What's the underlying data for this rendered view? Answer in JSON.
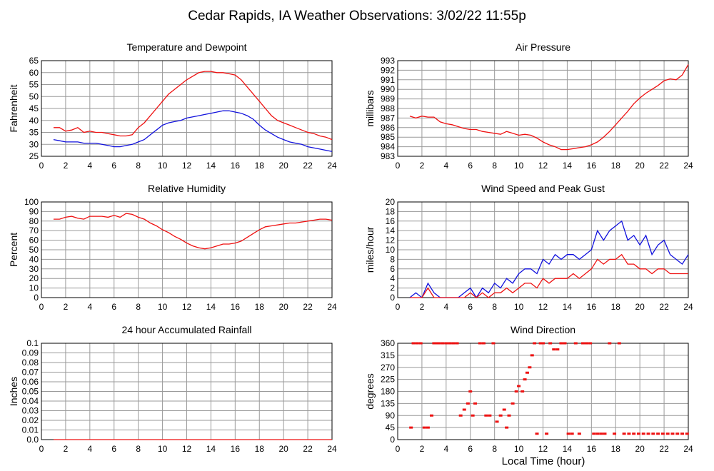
{
  "page": {
    "title": "Cedar Rapids, IA Weather Observations: 3/02/22 11:55p",
    "footer_xlabel": "Local Time (hour)"
  },
  "colors": {
    "red": "#ee1111",
    "blue": "#1111dd",
    "grid": "#9a9a9a"
  },
  "chart_data": [
    {
      "id": "temp",
      "type": "line",
      "title": "Temperature and Dewpoint",
      "ylabel": "Fahrenheit",
      "xlim": [
        0,
        24
      ],
      "ylim": [
        25,
        65
      ],
      "xticks": [
        2,
        4,
        6,
        8,
        10,
        12,
        14,
        16,
        18,
        20,
        22,
        24
      ],
      "yticks": [
        25,
        30,
        35,
        40,
        45,
        50,
        55,
        60,
        65
      ],
      "grid": true,
      "series": [
        {
          "color": "#ee1111",
          "x": [
            1,
            1.5,
            2,
            2.5,
            3,
            3.5,
            4,
            4.5,
            5,
            5.5,
            6,
            6.5,
            7,
            7.5,
            8,
            8.5,
            9,
            9.5,
            10,
            10.5,
            11,
            11.5,
            12,
            12.5,
            13,
            13.5,
            14,
            14.5,
            15,
            15.5,
            16,
            16.5,
            17,
            17.5,
            18,
            18.5,
            19,
            19.5,
            20,
            20.5,
            21,
            21.5,
            22,
            22.5,
            23,
            23.5,
            24
          ],
          "y": [
            37,
            37,
            35.5,
            36,
            37,
            35,
            35.5,
            35,
            35,
            34.5,
            34,
            33.5,
            33.5,
            34,
            37,
            39,
            42,
            45,
            48,
            51,
            53,
            55,
            57,
            58.5,
            60,
            60.5,
            60.5,
            60,
            60,
            59.5,
            59,
            57,
            54,
            51,
            48,
            45,
            42,
            40,
            39,
            38,
            37,
            36,
            35,
            34.5,
            33.5,
            33,
            32
          ]
        },
        {
          "color": "#1111dd",
          "x": [
            1,
            1.5,
            2,
            2.5,
            3,
            3.5,
            4,
            4.5,
            5,
            5.5,
            6,
            6.5,
            7,
            7.5,
            8,
            8.5,
            9,
            9.5,
            10,
            10.5,
            11,
            11.5,
            12,
            12.5,
            13,
            13.5,
            14,
            14.5,
            15,
            15.5,
            16,
            16.5,
            17,
            17.5,
            18,
            18.5,
            19,
            19.5,
            20,
            20.5,
            21,
            21.5,
            22,
            22.5,
            23,
            23.5,
            24
          ],
          "y": [
            32,
            31.5,
            31,
            31,
            31,
            30.5,
            30.5,
            30.5,
            30,
            29.5,
            29,
            29,
            29.5,
            30,
            31,
            32,
            34,
            36,
            38,
            39,
            39.5,
            40,
            41,
            41.5,
            42,
            42.5,
            43,
            43.5,
            44,
            44,
            43.5,
            43,
            42,
            40.5,
            38,
            36,
            34.5,
            33,
            32,
            31,
            30.5,
            30,
            29,
            28.5,
            28,
            27.5,
            27
          ]
        }
      ]
    },
    {
      "id": "pressure",
      "type": "line",
      "title": "Air Pressure",
      "ylabel": "millibars",
      "xlim": [
        0,
        24
      ],
      "ylim": [
        983,
        993
      ],
      "xticks": [
        2,
        4,
        6,
        8,
        10,
        12,
        14,
        16,
        18,
        20,
        22,
        24
      ],
      "yticks": [
        983,
        984,
        985,
        986,
        987,
        988,
        989,
        990,
        991,
        992,
        993
      ],
      "grid": true,
      "series": [
        {
          "color": "#ee1111",
          "x": [
            1,
            1.5,
            2,
            2.5,
            3,
            3.5,
            4,
            4.5,
            5,
            5.5,
            6,
            6.5,
            7,
            7.5,
            8,
            8.5,
            9,
            9.5,
            10,
            10.5,
            11,
            11.5,
            12,
            12.5,
            13,
            13.5,
            14,
            14.5,
            15,
            15.5,
            16,
            16.5,
            17,
            17.5,
            18,
            18.5,
            19,
            19.5,
            20,
            20.5,
            21,
            21.5,
            22,
            22.5,
            23,
            23.5,
            24
          ],
          "y": [
            987.2,
            987,
            987.2,
            987.1,
            987.1,
            986.6,
            986.4,
            986.3,
            986.1,
            985.9,
            985.8,
            985.8,
            985.6,
            985.5,
            985.4,
            985.3,
            985.6,
            985.4,
            985.2,
            985.3,
            985.2,
            984.9,
            984.5,
            984.2,
            984,
            983.7,
            983.7,
            983.8,
            983.9,
            984,
            984.2,
            984.5,
            985,
            985.6,
            986.3,
            987,
            987.7,
            988.5,
            989.1,
            989.6,
            990,
            990.4,
            990.9,
            991.1,
            991,
            991.5,
            992.6
          ]
        }
      ]
    },
    {
      "id": "humidity",
      "type": "line",
      "title": "Relative Humidity",
      "ylabel": "Percent",
      "xlim": [
        0,
        24
      ],
      "ylim": [
        0,
        100
      ],
      "xticks": [
        2,
        4,
        6,
        8,
        10,
        12,
        14,
        16,
        18,
        20,
        22,
        24
      ],
      "yticks": [
        0,
        10,
        20,
        30,
        40,
        50,
        60,
        70,
        80,
        90,
        100
      ],
      "grid": true,
      "series": [
        {
          "color": "#ee1111",
          "x": [
            1,
            1.5,
            2,
            2.5,
            3,
            3.5,
            4,
            4.5,
            5,
            5.5,
            6,
            6.5,
            7,
            7.5,
            8,
            8.5,
            9,
            9.5,
            10,
            10.5,
            11,
            11.5,
            12,
            12.5,
            13,
            13.5,
            14,
            14.5,
            15,
            15.5,
            16,
            16.5,
            17,
            17.5,
            18,
            18.5,
            19,
            19.5,
            20,
            20.5,
            21,
            21.5,
            22,
            22.5,
            23,
            23.5,
            24
          ],
          "y": [
            82,
            82,
            84,
            85,
            83,
            82,
            85,
            85,
            85,
            84,
            86,
            84,
            88,
            87,
            84,
            82,
            78,
            75,
            71,
            68,
            64,
            61,
            57,
            54,
            52,
            51,
            52,
            54,
            56,
            56,
            57,
            59,
            63,
            67,
            71,
            74,
            75,
            76,
            77,
            78,
            78,
            79,
            80,
            81,
            82,
            82,
            81
          ]
        }
      ]
    },
    {
      "id": "wind",
      "type": "line",
      "title": "Wind Speed and Peak Gust",
      "ylabel": "miles/hour",
      "xlim": [
        0,
        24
      ],
      "ylim": [
        0,
        20
      ],
      "xticks": [
        2,
        4,
        6,
        8,
        10,
        12,
        14,
        16,
        18,
        20,
        22,
        24
      ],
      "yticks": [
        0,
        2,
        4,
        6,
        8,
        10,
        12,
        14,
        16,
        18,
        20
      ],
      "grid": true,
      "series": [
        {
          "color": "#1111dd",
          "x": [
            1,
            1.5,
            2,
            2.5,
            3,
            3.5,
            4,
            4.5,
            5,
            5.5,
            6,
            6.5,
            7,
            7.5,
            8,
            8.5,
            9,
            9.5,
            10,
            10.5,
            11,
            11.5,
            12,
            12.5,
            13,
            13.5,
            14,
            14.5,
            15,
            15.5,
            16,
            16.5,
            17,
            17.5,
            18,
            18.5,
            19,
            19.5,
            20,
            20.5,
            21,
            21.5,
            22,
            22.5,
            23,
            23.5,
            24
          ],
          "y": [
            0,
            1,
            0,
            3,
            1,
            0,
            0,
            0,
            0,
            1,
            2,
            0,
            2,
            1,
            3,
            2,
            4,
            3,
            5,
            6,
            6,
            5,
            8,
            7,
            9,
            8,
            9,
            9,
            8,
            9,
            10,
            14,
            12,
            14,
            15,
            16,
            12,
            13,
            11,
            13,
            9,
            11,
            12,
            9,
            8,
            7,
            9
          ]
        },
        {
          "color": "#ee1111",
          "x": [
            1,
            1.5,
            2,
            2.5,
            3,
            3.5,
            4,
            4.5,
            5,
            5.5,
            6,
            6.5,
            7,
            7.5,
            8,
            8.5,
            9,
            9.5,
            10,
            10.5,
            11,
            11.5,
            12,
            12.5,
            13,
            13.5,
            14,
            14.5,
            15,
            15.5,
            16,
            16.5,
            17,
            17.5,
            18,
            18.5,
            19,
            19.5,
            20,
            20.5,
            21,
            21.5,
            22,
            22.5,
            23,
            23.5,
            24
          ],
          "y": [
            0,
            0,
            0,
            2,
            0,
            0,
            0,
            0,
            0,
            0,
            1,
            0,
            1,
            0,
            1,
            1,
            2,
            1,
            2,
            3,
            3,
            2,
            4,
            3,
            4,
            4,
            4,
            5,
            4,
            5,
            6,
            8,
            7,
            8,
            8,
            9,
            7,
            7,
            6,
            6,
            5,
            6,
            6,
            5,
            5,
            5,
            5
          ]
        }
      ]
    },
    {
      "id": "rain",
      "type": "line",
      "title": "24 hour Accumulated Rainfall",
      "ylabel": "Inches",
      "xlim": [
        0,
        24
      ],
      "ylim": [
        0,
        0.1
      ],
      "xticks": [
        2,
        4,
        6,
        8,
        10,
        12,
        14,
        16,
        18,
        20,
        22,
        24
      ],
      "yticks": [
        0.0,
        0.01,
        0.02,
        0.03,
        0.04,
        0.05,
        0.06,
        0.07,
        0.08,
        0.09,
        0.1
      ],
      "yticklabels": [
        "0.0",
        "0.01",
        "0.02",
        "0.03",
        "0.04",
        "0.05",
        "0.06",
        "0.07",
        "0.08",
        "0.09",
        "0.1"
      ],
      "grid": true,
      "series": [
        {
          "color": "#ee1111",
          "x": [
            1,
            24
          ],
          "y": [
            0,
            0
          ]
        }
      ]
    },
    {
      "id": "direction",
      "type": "scatter",
      "title": "Wind Direction",
      "ylabel": "degrees",
      "xlabel": "Local Time (hour)",
      "xlim": [
        0,
        24
      ],
      "ylim": [
        0,
        360
      ],
      "xticks": [
        2,
        4,
        6,
        8,
        10,
        12,
        14,
        16,
        18,
        20,
        22,
        24
      ],
      "yticks": [
        0,
        45,
        90,
        135,
        180,
        225,
        270,
        315,
        360
      ],
      "grid": true,
      "series": [
        {
          "color": "#ee1111",
          "x": [
            1.1,
            1.3,
            1.6,
            1.9,
            2.2,
            2.5,
            2.8,
            3.0,
            3.2,
            3.4,
            3.7,
            4.0,
            4.3,
            4.6,
            4.9,
            5.2,
            5.5,
            5.8,
            6.0,
            6.2,
            6.4,
            6.8,
            7.1,
            7.3,
            7.6,
            7.9,
            8.2,
            8.5,
            8.8,
            9.0,
            9.2,
            9.5,
            9.8,
            10.0,
            10.3,
            10.5,
            10.7,
            10.9,
            11.1,
            11.3,
            11.5,
            11.8,
            12.0,
            12.3,
            12.6,
            12.9,
            13.2,
            13.5,
            13.8,
            14.1,
            14.4,
            14.7,
            15.0,
            15.3,
            15.6,
            15.9,
            16.2,
            16.5,
            16.8,
            17.1,
            17.5,
            17.9,
            18.3,
            18.7,
            19.1,
            19.5,
            19.9,
            20.3,
            20.7,
            21.1,
            21.5,
            21.9,
            22.3,
            22.7,
            23.1,
            23.5,
            23.9
          ],
          "y": [
            45,
            360,
            360,
            360,
            45,
            45,
            90,
            360,
            360,
            360,
            360,
            360,
            360,
            360,
            360,
            90,
            112,
            135,
            180,
            90,
            135,
            360,
            360,
            90,
            90,
            360,
            67,
            90,
            112,
            45,
            90,
            135,
            180,
            200,
            180,
            225,
            250,
            270,
            315,
            360,
            22,
            360,
            360,
            22,
            360,
            337,
            337,
            360,
            360,
            22,
            22,
            360,
            22,
            360,
            360,
            360,
            22,
            22,
            22,
            22,
            360,
            22,
            360,
            22,
            22,
            22,
            22,
            22,
            22,
            22,
            22,
            22,
            22,
            22,
            22,
            22,
            22
          ]
        }
      ]
    }
  ]
}
